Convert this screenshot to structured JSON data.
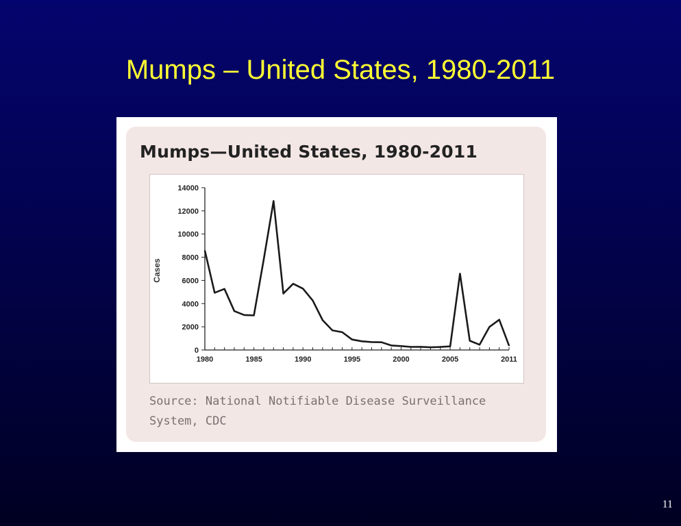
{
  "slide": {
    "title": "Mumps – United States, 1980-2011",
    "page_number": "11",
    "background_color": "#020258",
    "title_color": "#ffff33"
  },
  "figure": {
    "source": "Source: National Notifiable Disease Surveillance System, CDC"
  },
  "chart_data": {
    "type": "line",
    "title": "Mumps—United States, 1980-2011",
    "xlabel": "",
    "ylabel": "Cases",
    "xlim": [
      1980,
      2011
    ],
    "ylim": [
      0,
      14000
    ],
    "y_ticks": [
      0,
      2000,
      4000,
      6000,
      8000,
      10000,
      12000,
      14000
    ],
    "x_tick_labels": [
      "1980",
      "1985",
      "1990",
      "1995",
      "2000",
      "2005",
      "2011"
    ],
    "grid": false,
    "line_color": "#1a1a1a",
    "x": [
      1980,
      1981,
      1982,
      1983,
      1984,
      1985,
      1986,
      1987,
      1988,
      1989,
      1990,
      1991,
      1992,
      1993,
      1994,
      1995,
      1996,
      1997,
      1998,
      1999,
      2000,
      2001,
      2002,
      2003,
      2004,
      2005,
      2006,
      2007,
      2008,
      2009,
      2010,
      2011
    ],
    "series": [
      {
        "values": [
          8576,
          4941,
          5270,
          3355,
          3021,
          2982,
          7790,
          12848,
          4866,
          5712,
          5292,
          4264,
          2572,
          1692,
          1537,
          906,
          751,
          683,
          666,
          387,
          338,
          266,
          270,
          231,
          258,
          314,
          6584,
          800,
          454,
          1991,
          2612,
          370
        ]
      }
    ]
  }
}
